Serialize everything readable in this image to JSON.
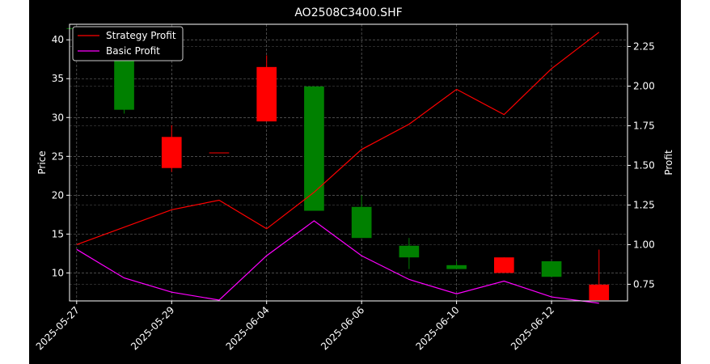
{
  "chart_data": {
    "type": "candlestick+line",
    "title": "AO2508C3400.SHF",
    "ylabel_left": "Price",
    "ylabel_right": "Profit",
    "ylim_left": [
      6.4,
      42.0
    ],
    "ylim_right": [
      0.645,
      2.39
    ],
    "yticks_left": [
      10,
      15,
      20,
      25,
      30,
      35,
      40
    ],
    "yticks_right": [
      0.75,
      1.0,
      1.25,
      1.5,
      1.75,
      2.0,
      2.25
    ],
    "x_tick_labels": [
      "2025-05-27",
      "2025-05-29",
      "2025-06-04",
      "2025-06-06",
      "2025-06-10",
      "2025-06-12"
    ],
    "x_tick_positions": [
      0,
      2,
      4,
      6,
      8,
      10
    ],
    "candles": [
      {
        "i": 0,
        "open": 41.5,
        "high": 41.5,
        "low": 40.5,
        "close": 41.5,
        "color": "#008000"
      },
      {
        "i": 1,
        "open": 41.0,
        "high": 41.0,
        "low": 30.5,
        "close": 31.0,
        "color": "#008000"
      },
      {
        "i": 2,
        "open": 23.5,
        "high": 29.0,
        "low": 23.0,
        "close": 27.5,
        "color": "#ff0000"
      },
      {
        "i": 3,
        "open": 25.4,
        "high": 25.4,
        "low": 25.4,
        "close": 25.5,
        "color": "#ff0000"
      },
      {
        "i": 4,
        "open": 29.5,
        "high": 38.0,
        "low": 29.5,
        "close": 36.5,
        "color": "#ff0000"
      },
      {
        "i": 5,
        "open": 34.0,
        "high": 34.0,
        "low": 18.0,
        "close": 18.0,
        "color": "#008000"
      },
      {
        "i": 6,
        "open": 18.5,
        "high": 20.0,
        "low": 14.5,
        "close": 14.5,
        "color": "#008000"
      },
      {
        "i": 7,
        "open": 13.5,
        "high": 14.5,
        "low": 10.5,
        "close": 12.0,
        "color": "#008000"
      },
      {
        "i": 8,
        "open": 11.0,
        "high": 11.5,
        "low": 10.5,
        "close": 10.5,
        "color": "#008000"
      },
      {
        "i": 9,
        "open": 10.0,
        "high": 12.0,
        "low": 10.0,
        "close": 12.0,
        "color": "#ff0000"
      },
      {
        "i": 10,
        "open": 11.5,
        "high": 11.5,
        "low": 9.5,
        "close": 9.5,
        "color": "#008000"
      },
      {
        "i": 11,
        "open": 6.5,
        "high": 13.0,
        "low": 6.5,
        "close": 8.5,
        "color": "#ff0000"
      }
    ],
    "series": [
      {
        "name": "Strategy Profit",
        "color": "#ff0000",
        "x": [
          0,
          2,
          3,
          4,
          5,
          6,
          7,
          8,
          9,
          10,
          11
        ],
        "values": [
          1.0,
          1.22,
          1.28,
          1.1,
          1.33,
          1.6,
          1.76,
          1.98,
          1.82,
          2.11,
          2.34
        ]
      },
      {
        "name": "Basic Profit",
        "color": "#ff00ff",
        "x": [
          0,
          1,
          2,
          3,
          4,
          5,
          6,
          7,
          8,
          9,
          10,
          11
        ],
        "values": [
          0.97,
          0.79,
          0.7,
          0.65,
          0.93,
          1.15,
          0.93,
          0.78,
          0.69,
          0.77,
          0.67,
          0.63
        ]
      }
    ],
    "x_range": [
      -0.15,
      11.6
    ],
    "grid": true,
    "legend_position": "top-left"
  }
}
